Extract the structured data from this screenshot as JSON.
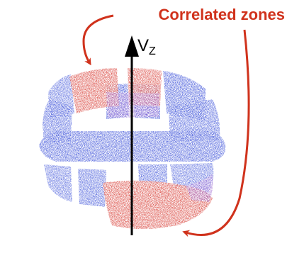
{
  "annotation": "Correlated zones",
  "axis_label": {
    "main": "V",
    "subscript": "Z"
  }
}
